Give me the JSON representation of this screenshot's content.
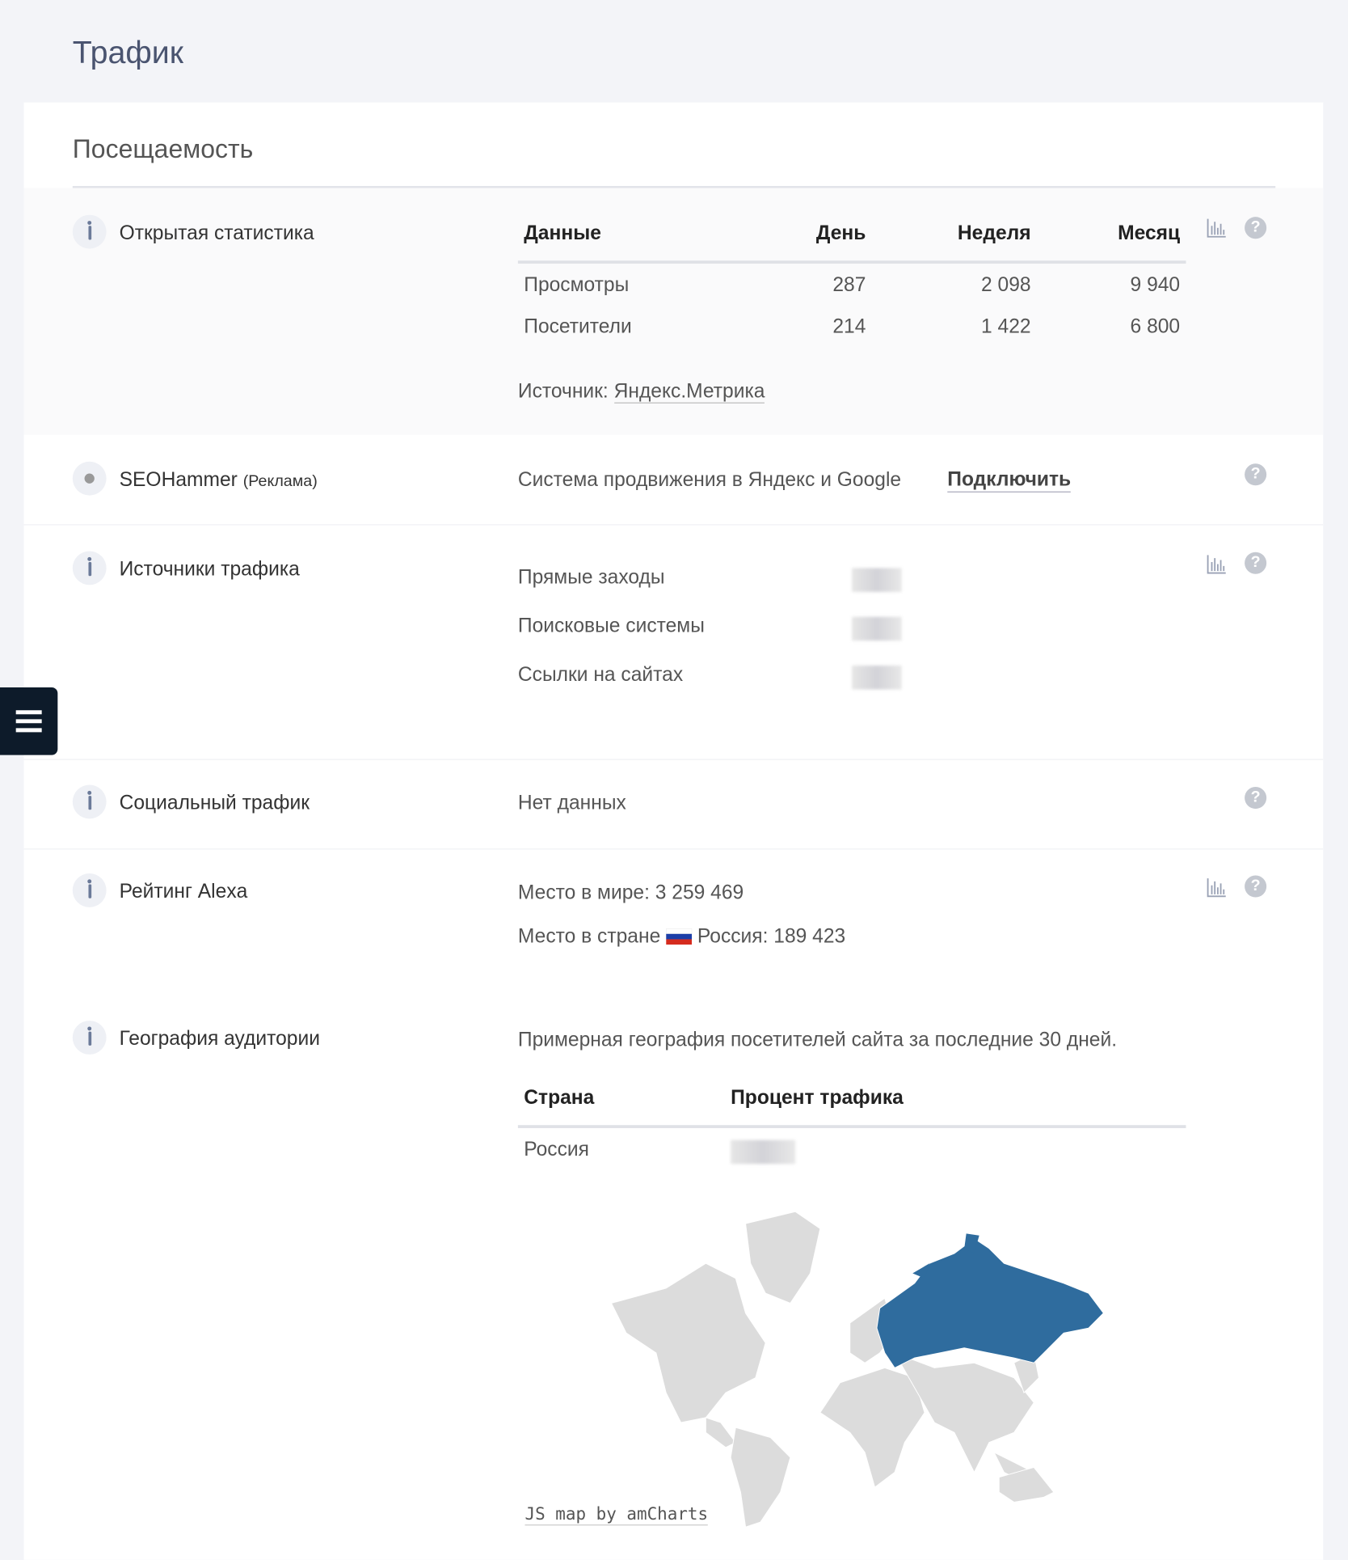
{
  "page_title": "Трафик",
  "section_title": "Посещаемость",
  "open_stats": {
    "label": "Открытая статистика",
    "table": {
      "headers": [
        "Данные",
        "День",
        "Неделя",
        "Месяц"
      ],
      "rows": [
        [
          "Просмотры",
          "287",
          "2 098",
          "9 940"
        ],
        [
          "Посетители",
          "214",
          "1 422",
          "6 800"
        ]
      ]
    },
    "source_label": "Источник:",
    "source_link": "Яндекс.Метрика"
  },
  "seohammer": {
    "label": "SEOHammer",
    "note": "(Реклама)",
    "description": "Система продвижения в Яндекс и Google",
    "action": "Подключить"
  },
  "traffic_sources": {
    "label": "Источники трафика",
    "items": [
      "Прямые заходы",
      "Поисковые системы",
      "Ссылки на сайтах"
    ]
  },
  "social": {
    "label": "Социальный трафик",
    "value": "Нет данных"
  },
  "alexa": {
    "label": "Рейтинг Alexa",
    "world": "Место в мире: 3 259 469",
    "country_prefix": "Место в стране",
    "country": "Россия: 189 423"
  },
  "geo": {
    "label": "География аудитории",
    "description": "Примерная география посетителей сайта за последние 30 дней.",
    "table": {
      "headers": [
        "Страна",
        "Процент трафика"
      ],
      "rows": [
        [
          "Россия"
        ]
      ]
    },
    "map_credit": "JS map by amCharts"
  }
}
